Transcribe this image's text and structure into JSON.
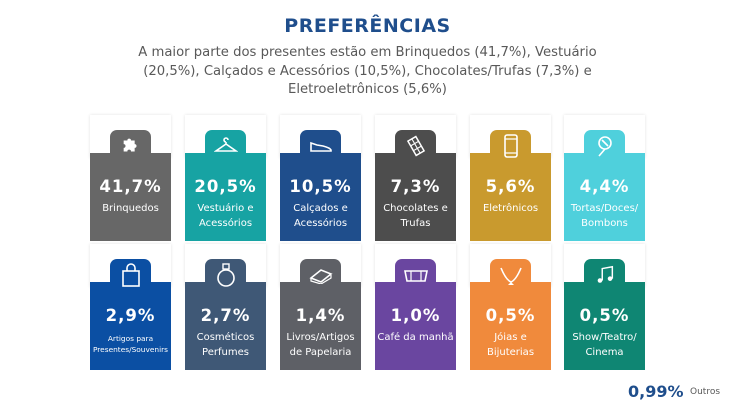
{
  "header": {
    "title": "PREFERÊNCIAS",
    "subtitle": "A maior parte dos presentes estão em Brinquedos (41,7%), Vestuário (20,5%), Calçados e Acessórios (10,5%), Chocolates/Trufas (7,3%) e Eletroeletrônicos (5,6%)"
  },
  "cards": [
    {
      "value": "41,7%",
      "label": "Brinquedos",
      "color": "#676767",
      "icon": "puzzle-icon"
    },
    {
      "value": "20,5%",
      "label": "Vestuário e Acessórios",
      "color": "#17a3a3",
      "icon": "hanger-icon"
    },
    {
      "value": "10,5%",
      "label": "Calçados e Acessórios",
      "color": "#1f4e8c",
      "icon": "shoe-icon"
    },
    {
      "value": "7,3%",
      "label": "Chocolates e Trufas",
      "color": "#4d4d4d",
      "icon": "chocolate-icon"
    },
    {
      "value": "5,6%",
      "label": "Eletrônicos",
      "color": "#c99a2e",
      "icon": "smartphone-icon"
    },
    {
      "value": "4,4%",
      "label": "Tortas/Doces/ Bombons",
      "color": "#4fd0dc",
      "icon": "candy-icon"
    },
    {
      "value": "2,9%",
      "label": "Artigos para Presentes/Souvenirs",
      "color": "#0b4fa3",
      "icon": "gift-bag-icon"
    },
    {
      "value": "2,7%",
      "label": "Cosméticos Perfumes",
      "color": "#3f5876",
      "icon": "perfume-icon"
    },
    {
      "value": "1,4%",
      "label": "Livros/Artigos de Papelaria",
      "color": "#5e6066",
      "icon": "book-icon"
    },
    {
      "value": "1,0%",
      "label": "Café da manhã",
      "color": "#6a46a0",
      "icon": "breakfast-icon"
    },
    {
      "value": "0,5%",
      "label": "Jóias e Bijuterias",
      "color": "#f08a3c",
      "icon": "jewelry-icon"
    },
    {
      "value": "0,5%",
      "label": "Show/Teatro/ Cinema",
      "color": "#0f8673",
      "icon": "music-notes-icon"
    }
  ],
  "others": {
    "value": "0,99%",
    "label": "Outros",
    "color": "#1f4e8c"
  }
}
